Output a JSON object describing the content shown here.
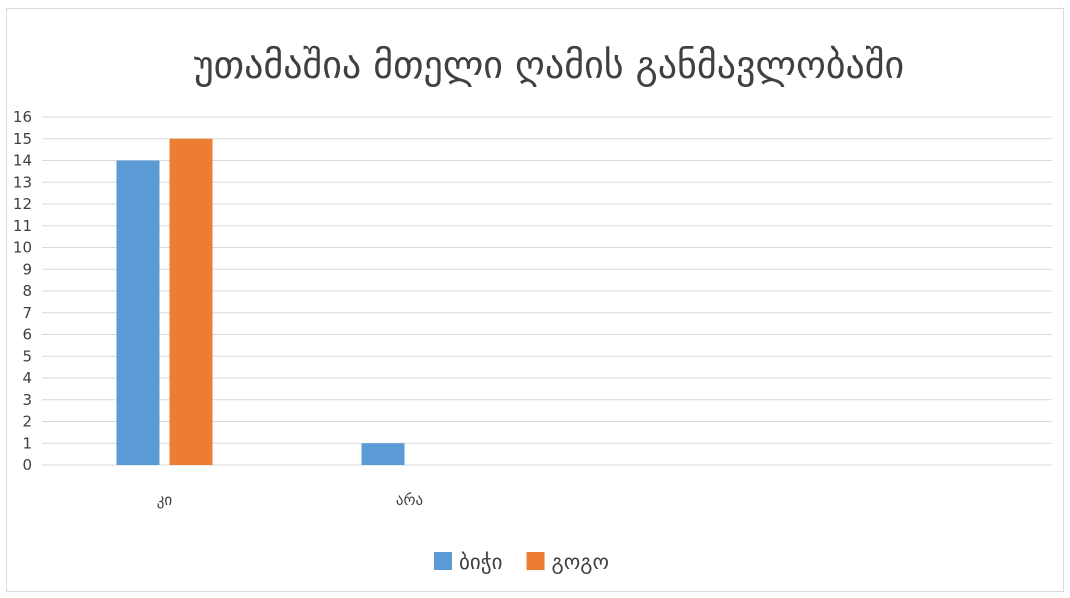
{
  "chart_data": {
    "type": "bar",
    "title": "უთამაშია მთელი ღამის განმავლობაში",
    "xlabel": "",
    "ylabel": "",
    "categories": [
      "კი",
      "არა"
    ],
    "series": [
      {
        "name": "ბიჭი",
        "values": [
          14,
          1
        ],
        "color": "#5b9bd5"
      },
      {
        "name": "გოგო",
        "values": [
          15,
          0
        ],
        "color": "#ed7d31"
      }
    ],
    "ylim": [
      0,
      16
    ],
    "y_ticks": [
      0,
      1,
      2,
      3,
      4,
      5,
      6,
      7,
      8,
      9,
      10,
      11,
      12,
      13,
      14,
      15,
      16
    ],
    "grid": true,
    "legend_position": "bottom"
  }
}
